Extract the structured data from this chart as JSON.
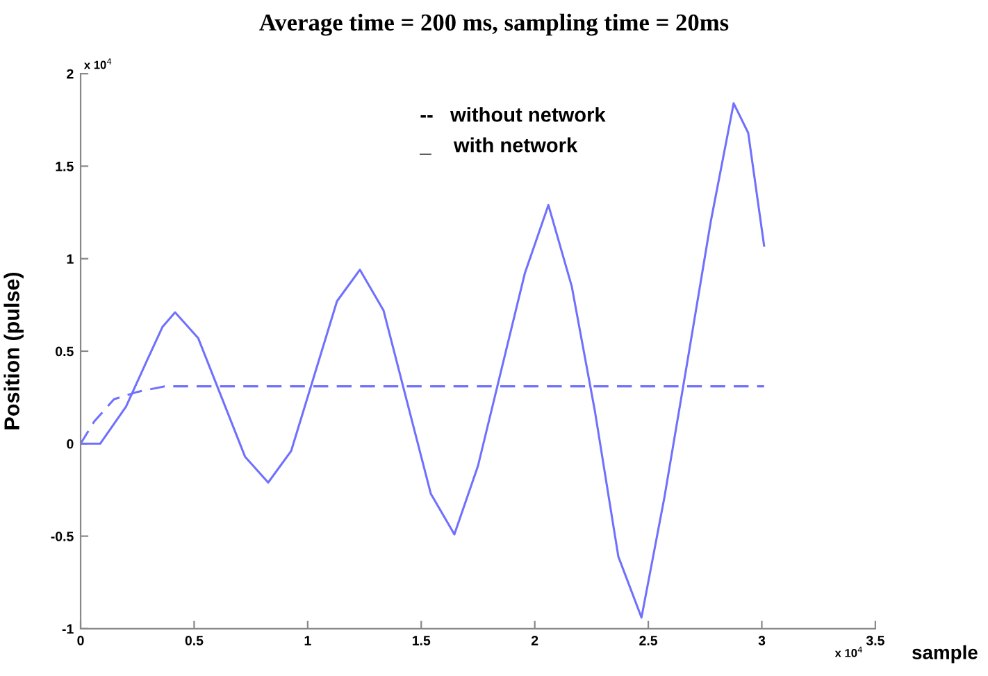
{
  "chart_data": {
    "type": "line",
    "title": "Average time = 200 ms, sampling time = 20ms",
    "xlabel": "sample",
    "ylabel": "Position (pulse)",
    "xlim": [
      0,
      3.5
    ],
    "xticks": [
      0,
      0.5,
      1,
      1.5,
      2,
      2.5,
      3,
      3.5
    ],
    "ylim": [
      -1,
      2
    ],
    "yticks": [
      -1,
      -0.5,
      0,
      0.5,
      1,
      1.5,
      2
    ],
    "grid": false,
    "annotations": [
      "x 10$^{4}$",
      "x 10$^{4}$",
      "--   without network",
      "_    with network"
    ],
    "series": [
      {
        "color": "#7070ff",
        "line_style": "dashed",
        "x": [
          0,
          0.06,
          0.147,
          0.25,
          0.37,
          3.01
        ],
        "values": [
          0,
          0.12,
          0.24,
          0.28,
          0.31,
          0.31
        ]
      },
      {
        "color": "#7070ff",
        "line_style": "solid",
        "x": [
          0,
          0.086,
          0.2,
          0.3,
          0.36,
          0.416,
          0.518,
          0.621,
          0.724,
          0.826,
          0.927,
          1.028,
          1.129,
          1.23,
          1.334,
          1.438,
          1.542,
          1.646,
          1.75,
          1.853,
          1.956,
          2.06,
          2.163,
          2.265,
          2.368,
          2.47,
          2.571,
          2.673,
          2.775,
          2.876,
          2.94,
          3.01
        ],
        "values": [
          0,
          0,
          0.2,
          0.47,
          0.63,
          0.71,
          0.57,
          0.25,
          -0.07,
          -0.21,
          -0.04,
          0.365,
          0.77,
          0.94,
          0.72,
          0.225,
          -0.27,
          -0.49,
          -0.12,
          0.4,
          0.92,
          1.29,
          0.85,
          0.175,
          -0.61,
          -0.94,
          -0.29,
          0.45,
          1.2,
          1.84,
          1.68,
          1.07
        ]
      }
    ]
  }
}
